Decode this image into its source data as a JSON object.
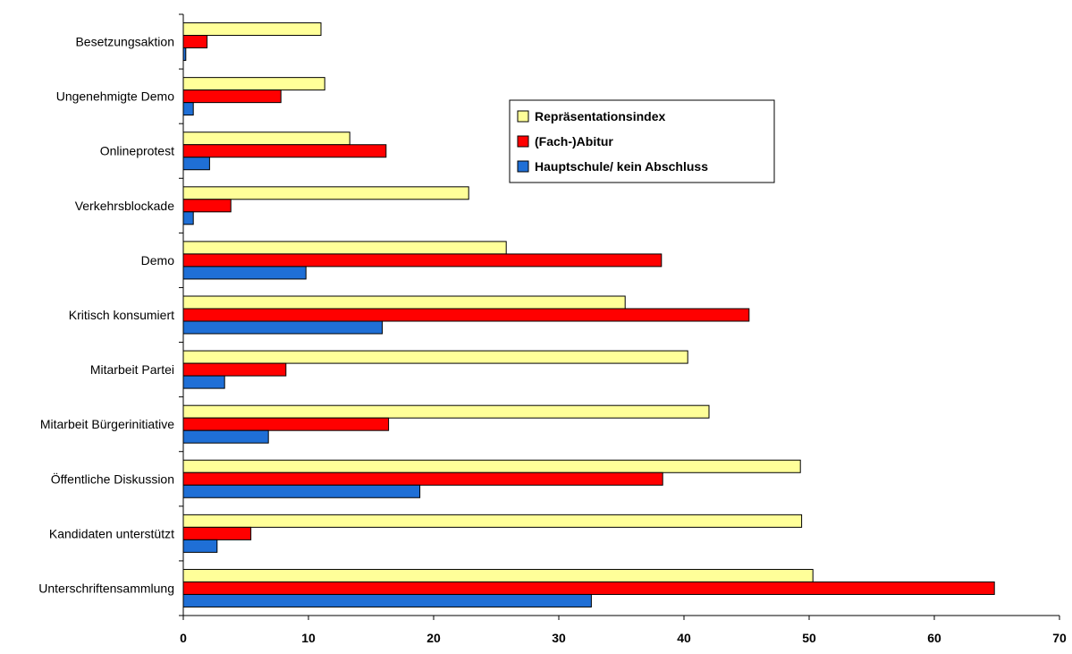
{
  "chart_data": {
    "type": "bar",
    "orientation": "horizontal",
    "categories": [
      "Besetzungsaktion",
      "Ungenehmigte Demo",
      "Onlineprotest",
      "Verkehrsblockade",
      "Demo",
      "Kritisch konsumiert",
      "Mitarbeit Partei",
      "Mitarbeit Bürgerinitiative",
      "Öffentliche Diskussion",
      "Kandidaten unterstützt",
      "Unterschriftensammlung"
    ],
    "series": [
      {
        "name": "Repräsentationsindex",
        "color": "#ffff99",
        "values": [
          11.0,
          11.3,
          13.3,
          22.8,
          25.8,
          35.3,
          40.3,
          42.0,
          49.3,
          49.4,
          50.3
        ]
      },
      {
        "name": "(Fach-)Abitur",
        "color": "#ff0000",
        "values": [
          1.9,
          7.8,
          16.2,
          3.8,
          38.2,
          45.2,
          8.2,
          16.4,
          38.3,
          5.4,
          64.8
        ]
      },
      {
        "name": "Hauptschule/ kein Abschluss",
        "color": "#1f6fd6",
        "values": [
          0.2,
          0.8,
          2.1,
          0.8,
          9.8,
          15.9,
          3.3,
          6.8,
          18.9,
          2.7,
          32.6
        ]
      }
    ],
    "xlim": [
      0,
      70
    ],
    "xticks": [
      0,
      10,
      20,
      30,
      40,
      50,
      60,
      70
    ],
    "title": "",
    "xlabel": "",
    "ylabel": "",
    "grid": false,
    "legend_position": "upper-center-right"
  }
}
